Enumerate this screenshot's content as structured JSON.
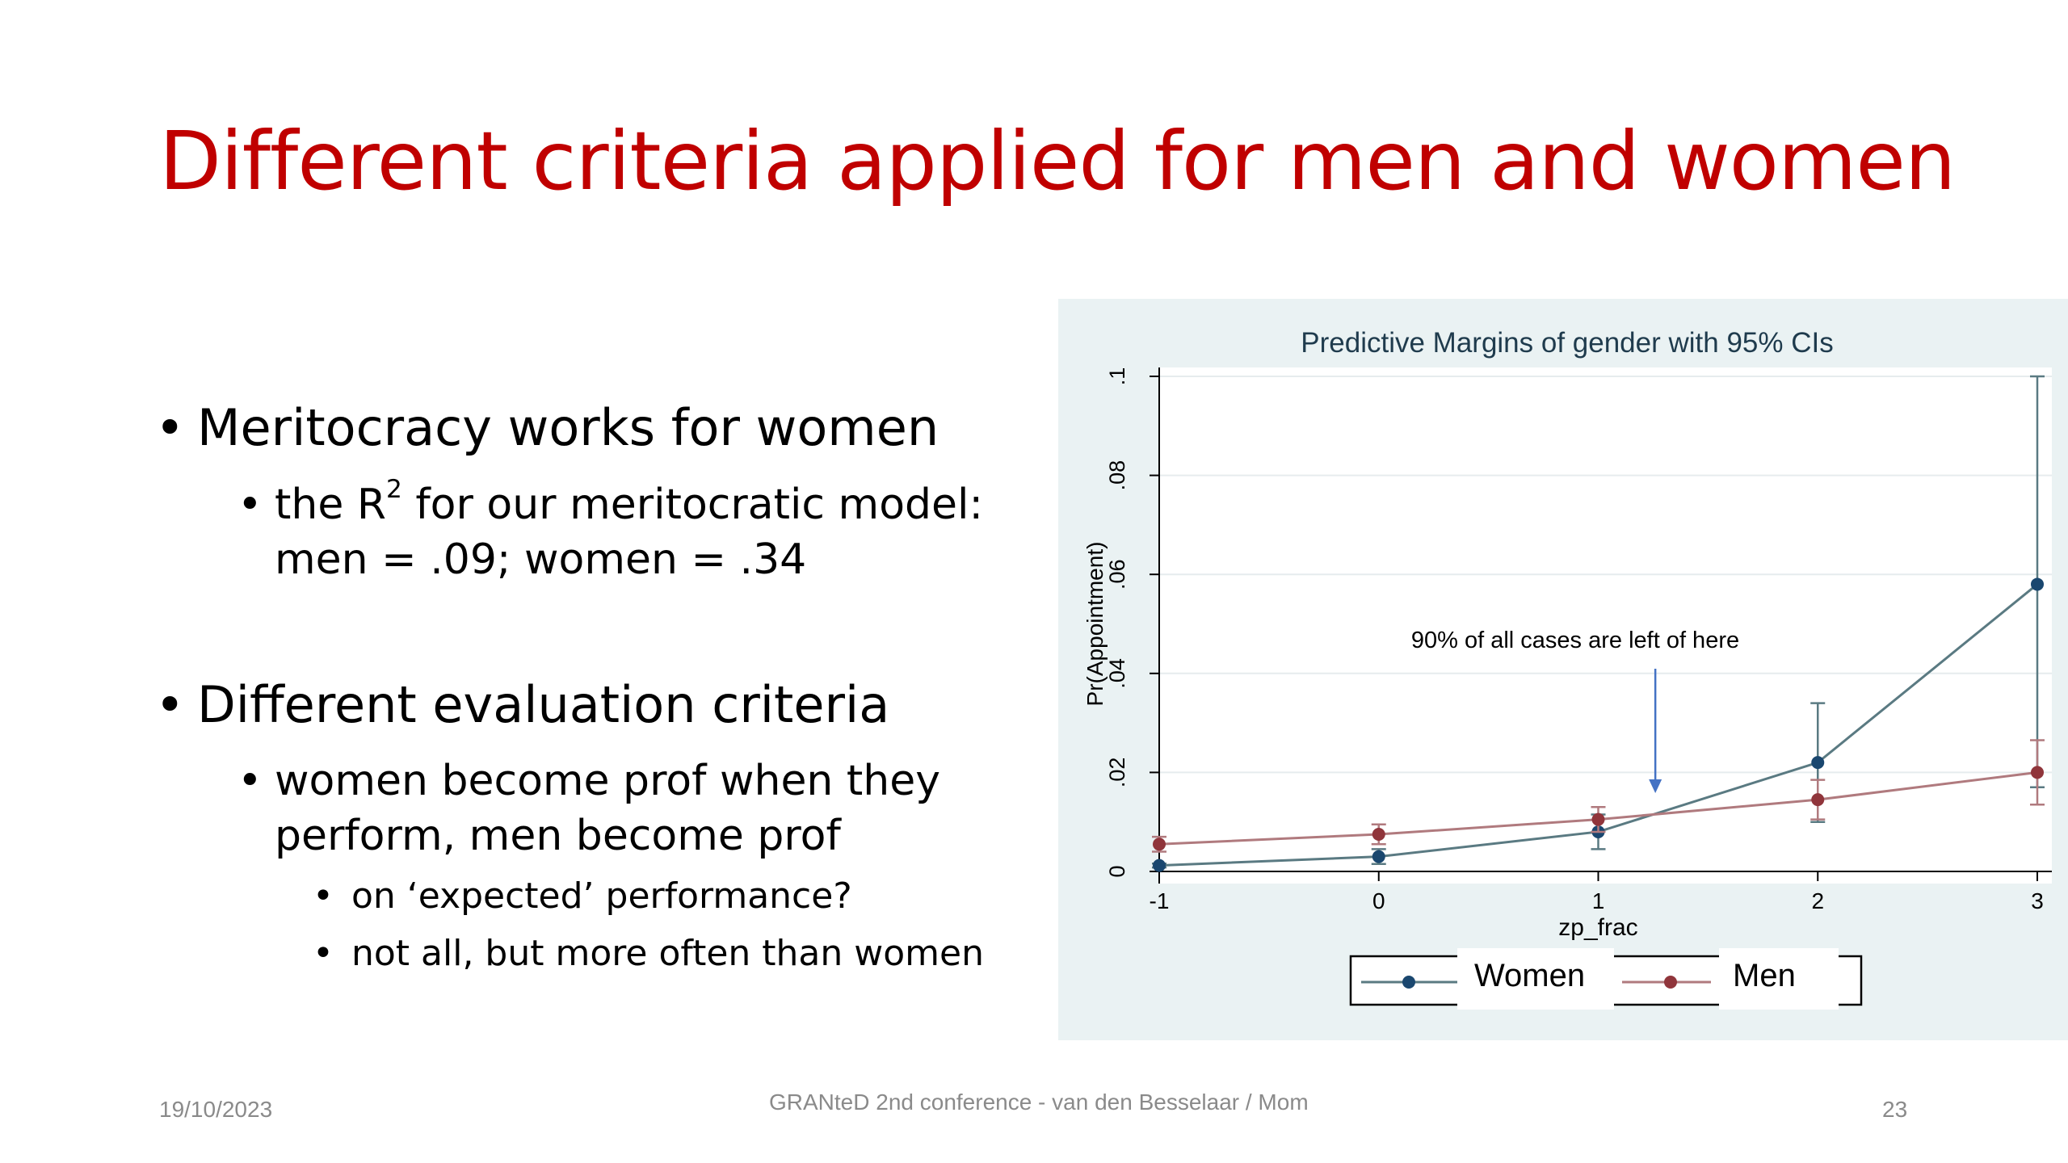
{
  "slide": {
    "title": "Different criteria applied for men and women",
    "bullets": {
      "b1": "Meritocracy works for women",
      "b1_sub1_pre": "the R",
      "b1_sub1_sup": "2",
      "b1_sub1_post": " for our meritocratic model:",
      "b1_sub1_line2": "men = .09; women = .34",
      "b2": "Different evaluation criteria",
      "b2_sub1_line1": "women become prof when they",
      "b2_sub1_line2": "perform, men become prof",
      "b2_sub1_sub1": "on ‘expected’ performance?",
      "b2_sub1_sub2": "not all, but more often than women",
      "bullet_glyph": "•"
    }
  },
  "footer": {
    "date": "19/10/2023",
    "center": "GRANteD 2nd conference - van den Besselaar / Mom",
    "page": "23"
  },
  "chart_data": {
    "type": "line",
    "title": "Predictive Margins of gender with 95% CIs",
    "xlabel": "zp_frac",
    "ylabel": "Pr(Appointment)",
    "x": [
      -1,
      0,
      1,
      2,
      3
    ],
    "xticks": [
      "-1",
      "0",
      "1",
      "2",
      "3"
    ],
    "yticks": [
      0,
      0.02,
      0.04,
      0.06,
      0.08,
      0.1
    ],
    "ytick_labels": [
      "0",
      ".02",
      ".04",
      ".06",
      ".08",
      ".1"
    ],
    "xlim": [
      -1,
      3
    ],
    "ylim": [
      0,
      0.1
    ],
    "grid": true,
    "legend_position": "bottom",
    "series": [
      {
        "name": "Women",
        "color": "#1A476F",
        "line_color": "#5A7A82",
        "values": [
          0.0012,
          0.003,
          0.008,
          0.022,
          0.058
        ],
        "ci_low": [
          0.0008,
          0.0015,
          0.0045,
          0.01,
          0.017
        ],
        "ci_high": [
          0.0016,
          0.0045,
          0.0115,
          0.034,
          0.1
        ]
      },
      {
        "name": "Men",
        "color": "#90353B",
        "line_color": "#B07A7E",
        "values": [
          0.0055,
          0.0075,
          0.0105,
          0.0145,
          0.02
        ],
        "ci_low": [
          0.004,
          0.0055,
          0.008,
          0.0105,
          0.0135
        ],
        "ci_high": [
          0.007,
          0.0095,
          0.013,
          0.0185,
          0.0265
        ]
      }
    ],
    "annotation": {
      "text": "90% of all cases are left of here",
      "x": 1.26,
      "arrow_color": "#4472C4"
    }
  }
}
